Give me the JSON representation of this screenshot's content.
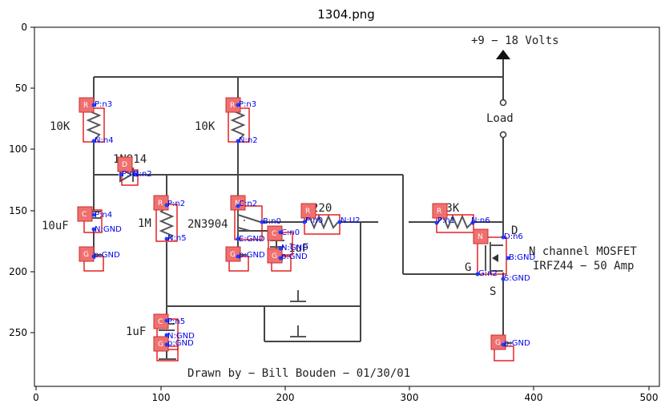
{
  "title": "1304.png",
  "axes": {
    "x_ticks": [
      "0",
      "100",
      "200",
      "300",
      "400",
      "500"
    ],
    "y_ticks": [
      "0",
      "50",
      "100",
      "150",
      "200",
      "250"
    ]
  },
  "schematic_text": {
    "supply": "+9 − 18  Volts",
    "load": "Load",
    "r1": "10K",
    "r2": "10K",
    "diode": "1N914",
    "cap1": "10uF",
    "r3": "1M",
    "transistor": "2N3904",
    "r4": "220",
    "cap2": "1uF",
    "r5": "33K",
    "mosfet1": "N channel MOSFET",
    "mosfet2": "IRFZ44 − 50 Amp",
    "gate": "G",
    "drain": "D",
    "source": "S",
    "cap3": "1uF",
    "credit": "Drawn by − Bill Bouden − 01/30/01"
  },
  "annotations": {
    "badges": [
      "R",
      "R",
      "D",
      "C",
      "R",
      "N",
      "R",
      "C",
      "R",
      "N",
      "C",
      "G",
      "G",
      "G",
      "G",
      "G"
    ],
    "labels": [
      "P:n3",
      "N:n4",
      "P:n3",
      "N:n2",
      "P:n1",
      "N:n2",
      "P:n4",
      "N:GND",
      "P:n2",
      "N:n5",
      "C:n2",
      "B:n0",
      "E:GND",
      "P:n0",
      "N:U2",
      "C:n0",
      "N:GND",
      "P:n1",
      "N:n6",
      "D:n6",
      "B:GND",
      "G:n2",
      "S:GND",
      "P:n5",
      "N:GND",
      "p:GND",
      "p:GND",
      "p:GND",
      "p:GND",
      "p:GND"
    ]
  }
}
